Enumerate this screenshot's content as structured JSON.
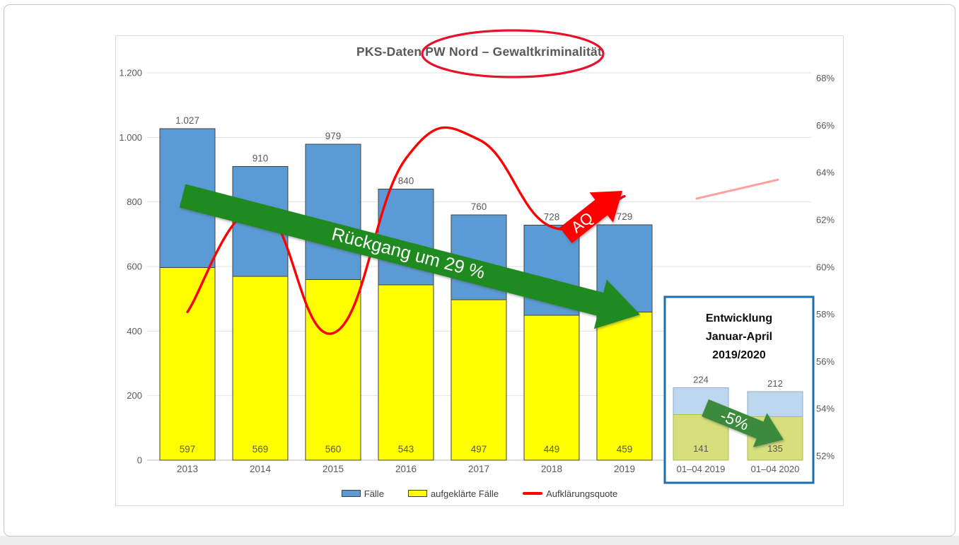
{
  "title": {
    "text": "PKS-Daten PW Nord – Gewaltkriminalität"
  },
  "annotations": {
    "main_arrow_label": "Rückgang um 29 %",
    "aq_arrow_label": "AQ",
    "inset_arrow_label": "-5%"
  },
  "legend": {
    "items": [
      {
        "label": "Fälle",
        "swatch": "box",
        "color": "#5B9BD5"
      },
      {
        "label": "aufgeklärte Fälle",
        "swatch": "box",
        "color": "#FFFF00"
      },
      {
        "label": "Aufklärungsquote",
        "swatch": "line",
        "color": "#FF0000"
      }
    ]
  },
  "axes": {
    "left_ticks": [
      {
        "label": "1.200",
        "value": 1200
      },
      {
        "label": "1.000",
        "value": 1000
      },
      {
        "label": "800",
        "value": 800
      },
      {
        "label": "600",
        "value": 600
      },
      {
        "label": "400",
        "value": 400
      },
      {
        "label": "200",
        "value": 200
      },
      {
        "label": "0",
        "value": 0
      }
    ],
    "right_ticks": [
      {
        "label": "68%",
        "value": 68
      },
      {
        "label": "66%",
        "value": 66
      },
      {
        "label": "64%",
        "value": 64
      },
      {
        "label": "62%",
        "value": 62
      },
      {
        "label": "60%",
        "value": 60
      },
      {
        "label": "58%",
        "value": 58
      },
      {
        "label": "56%",
        "value": 56
      },
      {
        "label": "54%",
        "value": 54
      },
      {
        "label": "52%",
        "value": 52
      }
    ]
  },
  "chart_data": {
    "type": "combo",
    "categories": [
      "2013",
      "2014",
      "2015",
      "2016",
      "2017",
      "2018",
      "2019"
    ],
    "series": [
      {
        "name": "Fälle",
        "type": "bar",
        "color": "#5B9BD5",
        "border": "#404040",
        "values": [
          1027,
          910,
          979,
          840,
          760,
          728,
          729
        ],
        "labels": [
          "1.027",
          "910",
          "979",
          "840",
          "760",
          "728",
          "729"
        ]
      },
      {
        "name": "aufgeklärte Fälle",
        "type": "bar",
        "color": "#FFFF00",
        "border": "#404040",
        "values": [
          597,
          569,
          560,
          543,
          497,
          449,
          459
        ],
        "labels": [
          "597",
          "569",
          "560",
          "543",
          "497",
          "449",
          "459"
        ]
      },
      {
        "name": "Aufklärungsquote",
        "type": "line",
        "color": "#FF0000",
        "axis": "right",
        "values": [
          58.1,
          62.5,
          57.2,
          64.6,
          65.4,
          61.7,
          63.0
        ]
      }
    ],
    "ylim_left": [
      0,
      1200
    ],
    "ylim_right": [
      52,
      68
    ],
    "grid": true,
    "legend_position": "bottom",
    "inset_aq_line": {
      "color": "#FF9E9E",
      "values": [
        62.9,
        63.7
      ]
    }
  },
  "inset": {
    "title_lines": [
      "Entwicklung",
      "Januar-April",
      "2019/2020"
    ],
    "border_color": "#1B6FAF",
    "chart_data": {
      "type": "bar",
      "categories": [
        "01–04 2019",
        "01–04 2020"
      ],
      "series": [
        {
          "name": "Fälle",
          "color": "#BDD7EE",
          "border": "#8FAECC",
          "values": [
            224,
            212
          ],
          "labels": [
            "224",
            "212"
          ]
        },
        {
          "name": "aufgeklärte Fälle",
          "color": "#D6DF7B",
          "border": "#AFBF4F",
          "values": [
            141,
            135
          ],
          "labels": [
            "141",
            "135"
          ]
        }
      ]
    }
  }
}
